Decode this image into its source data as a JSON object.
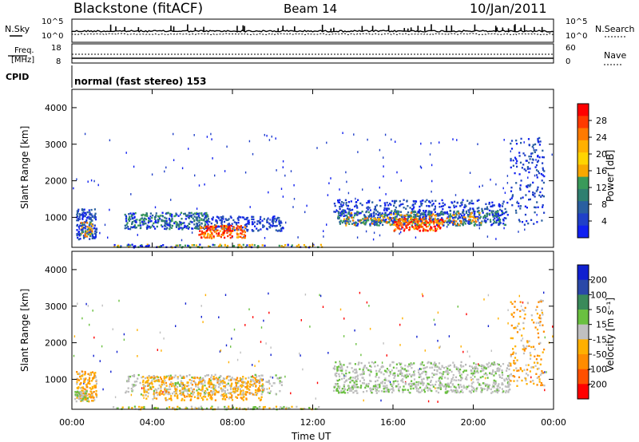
{
  "header": {
    "title": "Blackstone (fitACF)",
    "beam": "Beam 14",
    "date": "10/Jan/2011"
  },
  "top_panels": {
    "nsky_label": "N.Sky",
    "nsearch_label": "N.Search",
    "noise_left_ticks": [
      "10^5",
      "10^0"
    ],
    "noise_right_ticks": [
      "10^5",
      "10^0"
    ],
    "freq_label_1": "Freq.",
    "freq_label_2": "[MHz]",
    "freq_ticks": [
      "18",
      "8"
    ],
    "nave_label": "Nave",
    "nave_ticks": [
      "60",
      "0"
    ],
    "cpid_label": "CPID",
    "cpid_value": "normal (fast stereo) 153"
  },
  "axes": {
    "ylabel": "Slant Range [km]",
    "yticks": [
      "4000",
      "3000",
      "2000",
      "1000"
    ],
    "xlabel": "Time UT",
    "xticks": [
      "00:00",
      "04:00",
      "08:00",
      "12:00",
      "16:00",
      "20:00",
      "00:00"
    ]
  },
  "power_colorbar": {
    "label": "Power [dB]",
    "ticks": [
      "28",
      "24",
      "20",
      "16",
      "12",
      "8",
      "4"
    ],
    "colors": [
      "#ff0000",
      "#ff3a00",
      "#ff7a00",
      "#ffb000",
      "#ffd400",
      "#f8a800",
      "#3a9a5a",
      "#2f7f70",
      "#2a5fa0",
      "#2040c8",
      "#1020f0"
    ]
  },
  "velocity_colorbar": {
    "label": "Velocity [m s⁻¹]",
    "ticks": [
      "200",
      "100",
      "50",
      "15",
      "-15",
      "-50",
      "-100",
      "-200"
    ],
    "colors": [
      "#1020d0",
      "#2a48a8",
      "#3a8a5a",
      "#6ac040",
      "#c0c0c0",
      "#ffb000",
      "#ff8c00",
      "#ff5000",
      "#ff0000"
    ]
  },
  "chart_data": [
    {
      "type": "heatmap",
      "name": "power",
      "x": [
        "00:00",
        "24:00"
      ],
      "ylim": [
        180,
        4500
      ],
      "regions": [
        {
          "t0": 0.2,
          "t1": 1.2,
          "r0": 420,
          "r1": 1250,
          "level": "blue-green-orange"
        },
        {
          "t0": 2.6,
          "t1": 6.8,
          "r0": 700,
          "r1": 1150,
          "level": "blue-green"
        },
        {
          "t0": 6.3,
          "t1": 8.6,
          "r0": 450,
          "r1": 800,
          "level": "red-orange"
        },
        {
          "t0": 6.8,
          "t1": 10.5,
          "r0": 650,
          "r1": 1050,
          "level": "blue"
        },
        {
          "t0": 13.0,
          "t1": 21.8,
          "r0": 650,
          "r1": 1500,
          "level": "red-green-blue"
        },
        {
          "t0": 21.8,
          "t1": 23.5,
          "r0": 800,
          "r1": 3200,
          "level": "blue"
        }
      ]
    },
    {
      "type": "heatmap",
      "name": "velocity",
      "x": [
        "00:00",
        "24:00"
      ],
      "ylim": [
        180,
        4500
      ],
      "regions": [
        {
          "t0": 0.2,
          "t1": 1.2,
          "r0": 420,
          "r1": 1250,
          "level": "orange-green"
        },
        {
          "t0": 2.6,
          "t1": 10.5,
          "r0": 450,
          "r1": 1150,
          "level": "orange-grey"
        },
        {
          "t0": 13.0,
          "t1": 21.8,
          "r0": 650,
          "r1": 1500,
          "level": "grey-green"
        },
        {
          "t0": 21.8,
          "t1": 23.5,
          "r0": 800,
          "r1": 3200,
          "level": "grey-orange"
        }
      ]
    }
  ]
}
